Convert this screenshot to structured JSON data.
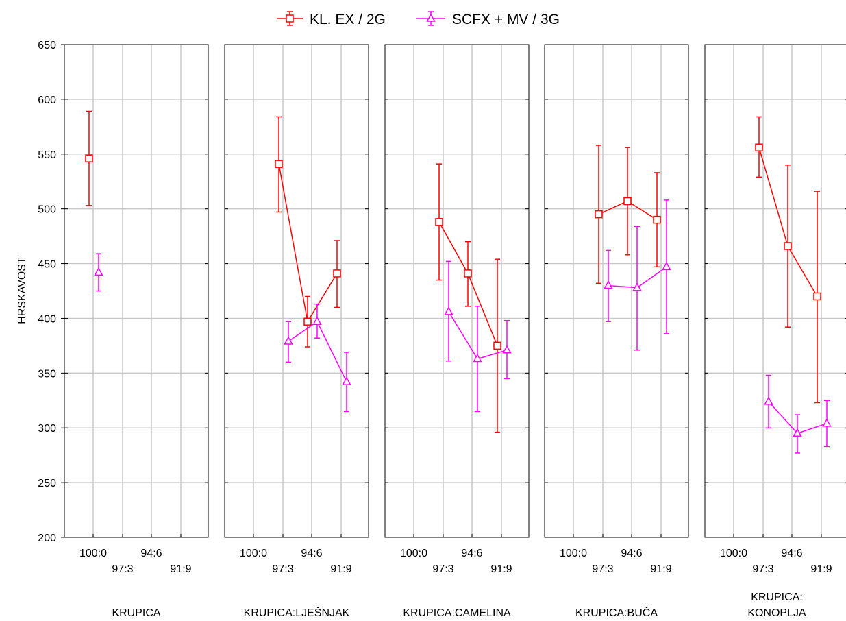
{
  "chart_data": {
    "type": "line",
    "ylabel": "HRSKAVOST",
    "ylim": [
      200,
      650
    ],
    "yticks": [
      200,
      250,
      300,
      350,
      400,
      450,
      500,
      550,
      600,
      650
    ],
    "grid": true,
    "legend_position": "top-center",
    "colors": {
      "series1": "#ff0000",
      "series2": "#ff00ff",
      "grid": "#c8c8c8",
      "axis": "#000000"
    },
    "x_categories": [
      "100:0",
      "97:3",
      "94:6",
      "91:9"
    ],
    "series": [
      {
        "name": "KL. EX / 2G",
        "marker": "square",
        "color": "#ff0000"
      },
      {
        "name": "SCFX + MV / 3G",
        "marker": "triangle",
        "color": "#ff00ff"
      }
    ],
    "panels": [
      {
        "title": [
          "KRUPICA"
        ],
        "series": [
          {
            "points": [
              {
                "x": "100:0",
                "y": 546,
                "lo": 503,
                "hi": 589
              }
            ]
          },
          {
            "points": [
              {
                "x": "100:0",
                "y": 442,
                "lo": 425,
                "hi": 459
              }
            ]
          }
        ]
      },
      {
        "title": [
          "KRUPICA:LJEŠNJAK"
        ],
        "series": [
          {
            "points": [
              {
                "x": "97:3",
                "y": 541,
                "lo": 497,
                "hi": 584
              },
              {
                "x": "94:6",
                "y": 397,
                "lo": 374,
                "hi": 420
              },
              {
                "x": "91:9",
                "y": 441,
                "lo": 410,
                "hi": 471
              }
            ]
          },
          {
            "points": [
              {
                "x": "97:3",
                "y": 379,
                "lo": 360,
                "hi": 397
              },
              {
                "x": "94:6",
                "y": 397,
                "lo": 382,
                "hi": 413
              },
              {
                "x": "91:9",
                "y": 342,
                "lo": 315,
                "hi": 369
              }
            ]
          }
        ]
      },
      {
        "title": [
          "KRUPICA:CAMELINA"
        ],
        "series": [
          {
            "points": [
              {
                "x": "97:3",
                "y": 488,
                "lo": 435,
                "hi": 541
              },
              {
                "x": "94:6",
                "y": 441,
                "lo": 411,
                "hi": 470
              },
              {
                "x": "91:9",
                "y": 375,
                "lo": 296,
                "hi": 454
              }
            ]
          },
          {
            "points": [
              {
                "x": "97:3",
                "y": 406,
                "lo": 361,
                "hi": 452
              },
              {
                "x": "94:6",
                "y": 363,
                "lo": 315,
                "hi": 411
              },
              {
                "x": "91:9",
                "y": 371,
                "lo": 345,
                "hi": 398
              }
            ]
          }
        ]
      },
      {
        "title": [
          "KRUPICA:BUČA"
        ],
        "series": [
          {
            "points": [
              {
                "x": "97:3",
                "y": 495,
                "lo": 432,
                "hi": 558
              },
              {
                "x": "94:6",
                "y": 507,
                "lo": 458,
                "hi": 556
              },
              {
                "x": "91:9",
                "y": 490,
                "lo": 447,
                "hi": 533
              }
            ]
          },
          {
            "points": [
              {
                "x": "97:3",
                "y": 430,
                "lo": 397,
                "hi": 462
              },
              {
                "x": "94:6",
                "y": 428,
                "lo": 371,
                "hi": 484
              },
              {
                "x": "91:9",
                "y": 447,
                "lo": 386,
                "hi": 508
              }
            ]
          }
        ]
      },
      {
        "title": [
          "KRUPICA:",
          "KONOPLJA"
        ],
        "series": [
          {
            "points": [
              {
                "x": "97:3",
                "y": 556,
                "lo": 529,
                "hi": 584
              },
              {
                "x": "94:6",
                "y": 466,
                "lo": 392,
                "hi": 540
              },
              {
                "x": "91:9",
                "y": 420,
                "lo": 323,
                "hi": 516
              }
            ]
          },
          {
            "points": [
              {
                "x": "97:3",
                "y": 324,
                "lo": 300,
                "hi": 348
              },
              {
                "x": "94:6",
                "y": 295,
                "lo": 277,
                "hi": 312
              },
              {
                "x": "91:9",
                "y": 304,
                "lo": 283,
                "hi": 325
              }
            ]
          }
        ]
      }
    ]
  }
}
